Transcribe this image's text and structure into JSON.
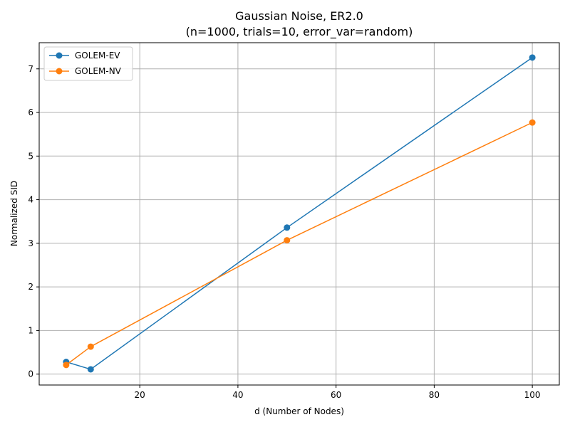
{
  "chart_data": {
    "type": "line",
    "title": "Gaussian Noise, ER2.0",
    "subtitle": "(n=1000, trials=10, error_var=random)",
    "xlabel": "d (Number of Nodes)",
    "ylabel": "Normalized SID",
    "xlim": [
      -0.5,
      105.5
    ],
    "ylim": [
      -0.25,
      7.6
    ],
    "xticks": [
      20,
      40,
      60,
      80,
      100
    ],
    "yticks": [
      0,
      1,
      2,
      3,
      4,
      5,
      6,
      7
    ],
    "grid": true,
    "legend_position": "top-left",
    "x": [
      5,
      10,
      50,
      100
    ],
    "series": [
      {
        "name": "GOLEM-EV",
        "color": "#1f77b4",
        "marker": "circle",
        "values": [
          0.28,
          0.11,
          3.36,
          7.26
        ]
      },
      {
        "name": "GOLEM-NV",
        "color": "#ff7f0e",
        "marker": "circle",
        "values": [
          0.21,
          0.63,
          3.07,
          5.77
        ]
      }
    ]
  }
}
